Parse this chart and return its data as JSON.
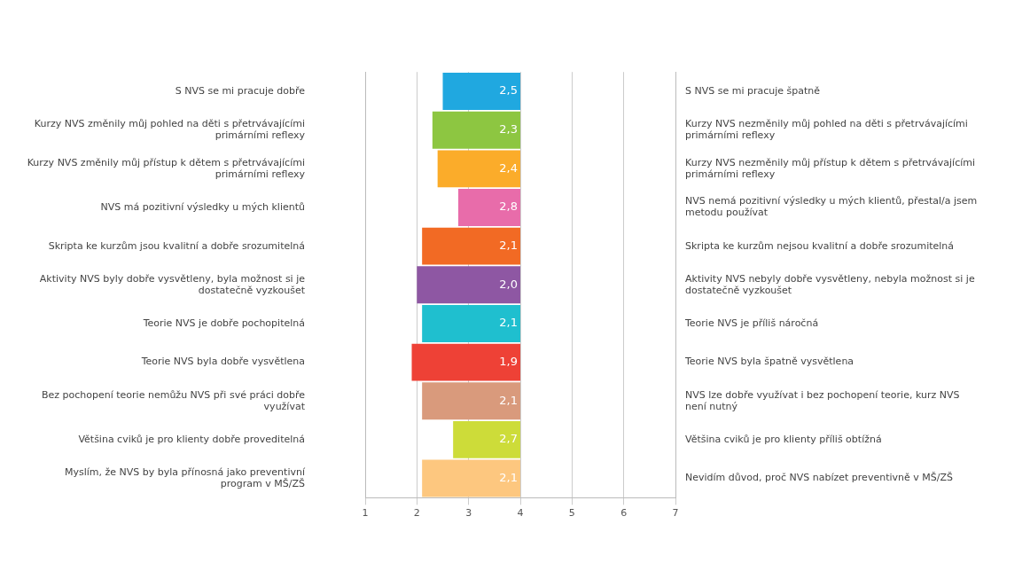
{
  "chart_data": {
    "type": "bar",
    "orientation": "horizontal",
    "categories": [
      "S NVS se mi pracuje dobře",
      "Kurzy NVS změnily můj pohled na děti s přetrvávajícími primárními reflexy",
      "Kurzy NVS změnily můj přístup k dětem s přetrvávajícími primárními reflexy",
      "NVS má pozitivní výsledky u mých klientů",
      "Skripta ke kurzům jsou kvalitní a dobře srozumitelná",
      "Aktivity NVS byly dobře vysvětleny, byla možnost si je dostatečně vyzkoušet",
      "Teorie NVS je dobře pochopitelná",
      "Teorie NVS byla dobře vysvětlena",
      "Bez pochopení teorie nemůžu NVS při své práci dobře využívat",
      "Většina cviků je pro klienty dobře proveditelná",
      "Myslím, že NVS by byla přínosná jako preventivní program v MŠ/ZŠ"
    ],
    "y2_categories": [
      "S NVS se mi pracuje špatně",
      "Kurzy NVS nezměnily můj pohled na děti s přetrvávajícími primárními reflexy",
      "Kurzy NVS nezměnily můj přístup k dětem s přetrvávajícími primárními reflexy",
      "NVS nemá pozitivní výsledky u mých klientů, přestal/a jsem metodu používat",
      "Skripta ke kurzům nejsou kvalitní a dobře srozumitelná",
      "Aktivity NVS nebyly dobře vysvětleny, nebyla možnost si je dostatečně vyzkoušet",
      "Teorie NVS je příliš náročná",
      "Teorie NVS byla špatně vysvětlena",
      "NVS lze dobře využívat i bez pochopení teorie, kurz NVS není nutný",
      "Většina cviků je pro klienty příliš obtížná",
      "Nevidím důvod, proč NVS nabízet preventivně v MŠ/ZŠ"
    ],
    "base": [
      4,
      4,
      4,
      4,
      4,
      4,
      4,
      4,
      4,
      4,
      4
    ],
    "values": [
      -1.5,
      -1.7,
      -1.6,
      -1.2,
      -1.9,
      -2.0,
      -1.9,
      -2.1,
      -1.9,
      -1.3,
      -1.9
    ],
    "value_labels": [
      "2,5",
      "2,3",
      "2,4",
      "2,8",
      "2,1",
      "2,0",
      "2,1",
      "1,9",
      "2,1",
      "2,7",
      "2,1"
    ],
    "colors": [
      "#20a8e0",
      "#8dc641",
      "#fbac2a",
      "#e86caa",
      "#f26a24",
      "#8e57a3",
      "#1fbfcf",
      "#ee4136",
      "#d99a7c",
      "#cddc39",
      "#fdc77f"
    ],
    "xlim": [
      1,
      7
    ],
    "xticks": [
      1,
      2,
      3,
      4,
      5,
      6,
      7
    ],
    "grid": "x",
    "legend": false
  }
}
